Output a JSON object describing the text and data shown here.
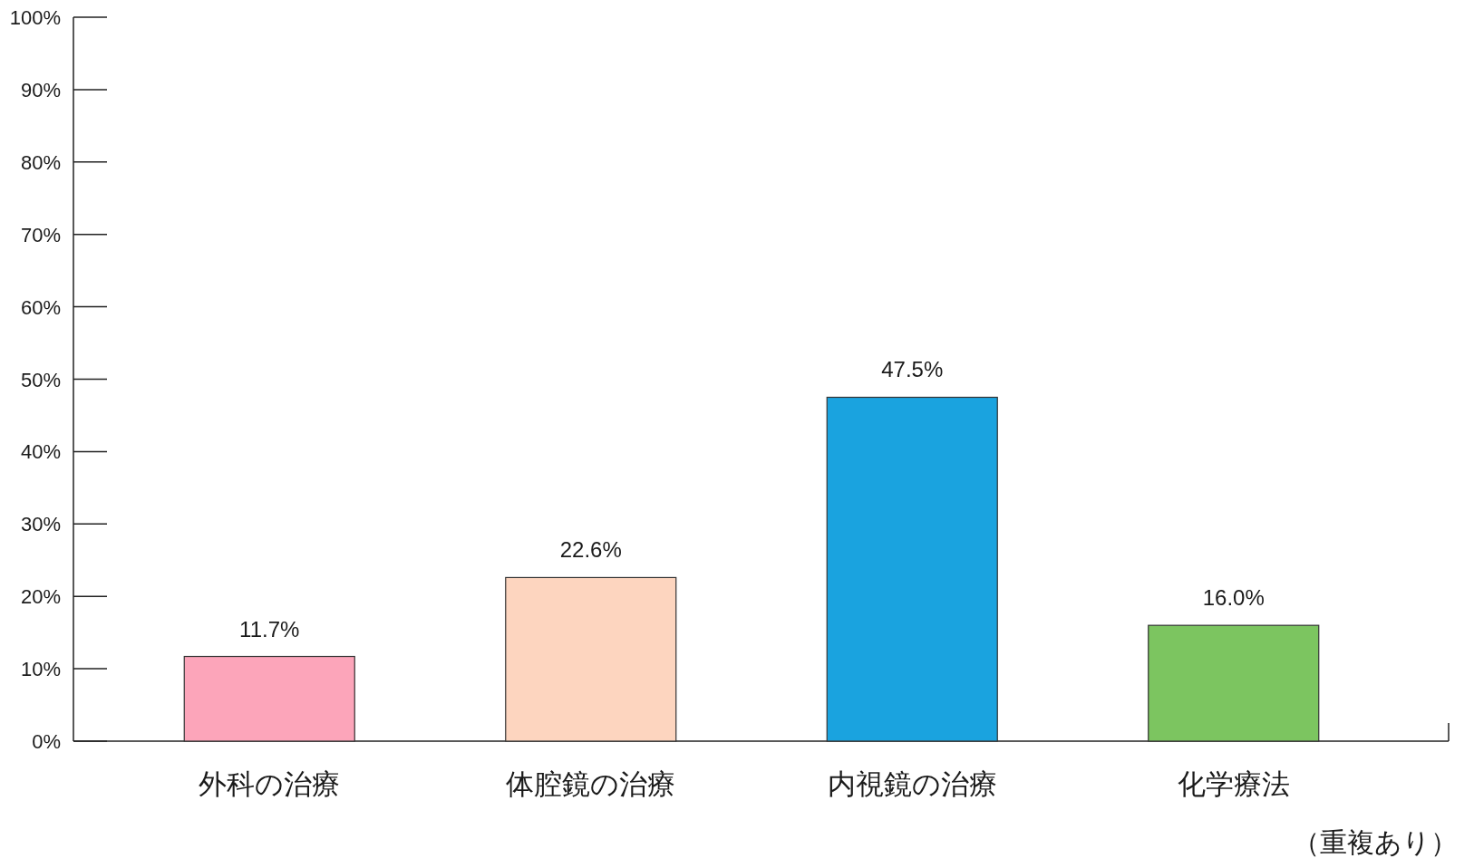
{
  "chart_data": {
    "type": "bar",
    "categories": [
      "外科の治療",
      "体腔鏡の治療",
      "内視鏡の治療",
      "化学療法"
    ],
    "values": [
      11.7,
      22.6,
      47.5,
      16.0
    ],
    "colors": [
      "#fca5ba",
      "#fdd5bf",
      "#1aa3df",
      "#7cc560"
    ],
    "value_labels": [
      "11.7%",
      "22.6%",
      "47.5%",
      "16.0%"
    ],
    "ylim": [
      0,
      100
    ],
    "yticks": [
      {
        "value": 0,
        "label": "0%"
      },
      {
        "value": 10,
        "label": "10%"
      },
      {
        "value": 20,
        "label": "20%"
      },
      {
        "value": 30,
        "label": "30%"
      },
      {
        "value": 40,
        "label": "40%"
      },
      {
        "value": 50,
        "label": "50%"
      },
      {
        "value": 60,
        "label": "60%"
      },
      {
        "value": 70,
        "label": "70%"
      },
      {
        "value": 80,
        "label": "80%"
      },
      {
        "value": 90,
        "label": "90%"
      },
      {
        "value": 100,
        "label": "100%"
      }
    ],
    "annotations": [
      "（重複あり）"
    ]
  }
}
